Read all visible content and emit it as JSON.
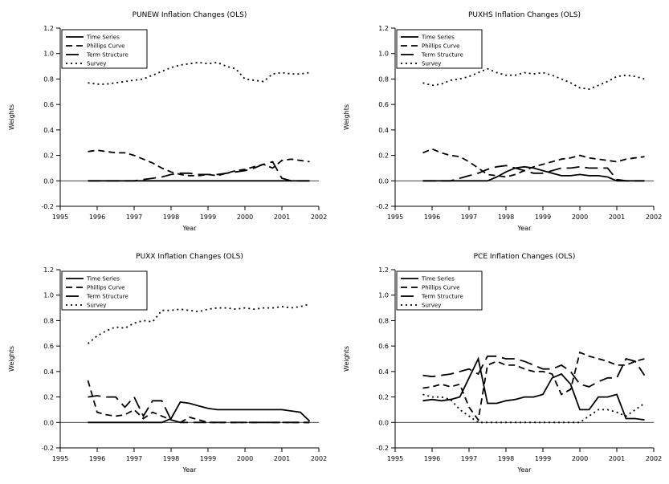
{
  "figure": {
    "background": "#ffffff",
    "line_color": "#000000",
    "layout": "2x2-grid"
  },
  "chart_data": [
    {
      "type": "line",
      "title": "PUNEW Inflation Changes (OLS)",
      "xlabel": "Year",
      "ylabel": "Weights",
      "xlim": [
        1995,
        2002
      ],
      "ylim": [
        -0.2,
        1.2
      ],
      "xticks": [
        1995,
        1996,
        1997,
        1998,
        1999,
        2000,
        2001,
        2002
      ],
      "yticks": [
        -0.2,
        0.0,
        0.2,
        0.4,
        0.6,
        0.8,
        1.0,
        1.2
      ],
      "grid": false,
      "legend_position": "top-left",
      "zero_reference_line": true,
      "x": [
        1995.75,
        1996,
        1996.25,
        1996.5,
        1996.75,
        1997,
        1997.25,
        1997.5,
        1997.75,
        1998,
        1998.25,
        1998.5,
        1998.75,
        1999,
        1999.25,
        1999.5,
        1999.75,
        2000,
        2000.25,
        2000.5,
        2000.75,
        2001,
        2001.25,
        2001.5,
        2001.75
      ],
      "series": [
        {
          "name": "Time Series",
          "style": "solid",
          "y": [
            0,
            0,
            0,
            0,
            0,
            0,
            0,
            0,
            0,
            0,
            0,
            0,
            0,
            0,
            0,
            0,
            0,
            0,
            0,
            0,
            0,
            0,
            0,
            0,
            0
          ]
        },
        {
          "name": "Phillips Curve",
          "style": "dash",
          "y": [
            0.23,
            0.24,
            0.23,
            0.22,
            0.22,
            0.2,
            0.17,
            0.14,
            0.1,
            0.07,
            0.05,
            0.04,
            0.04,
            0.05,
            0.04,
            0.06,
            0.08,
            0.09,
            0.11,
            0.13,
            0.1,
            0.16,
            0.17,
            0.16,
            0.15
          ]
        },
        {
          "name": "Term Structure",
          "style": "longdash",
          "y": [
            0,
            0,
            0,
            0,
            0,
            0,
            0.01,
            0.02,
            0.03,
            0.05,
            0.06,
            0.06,
            0.05,
            0.05,
            0.05,
            0.06,
            0.07,
            0.08,
            0.1,
            0.13,
            0.15,
            0.02,
            0,
            0,
            0
          ]
        },
        {
          "name": "Survey",
          "style": "dot",
          "y": [
            0.77,
            0.76,
            0.76,
            0.77,
            0.78,
            0.79,
            0.8,
            0.83,
            0.86,
            0.89,
            0.91,
            0.92,
            0.93,
            0.92,
            0.93,
            0.9,
            0.88,
            0.8,
            0.79,
            0.78,
            0.84,
            0.85,
            0.84,
            0.84,
            0.85
          ]
        }
      ]
    },
    {
      "type": "line",
      "title": "PUXHS Inflation Changes (OLS)",
      "xlabel": "Year",
      "ylabel": "Weights",
      "xlim": [
        1995,
        2002
      ],
      "ylim": [
        -0.2,
        1.2
      ],
      "xticks": [
        1995,
        1996,
        1997,
        1998,
        1999,
        2000,
        2001,
        2002
      ],
      "yticks": [
        -0.2,
        0.0,
        0.2,
        0.4,
        0.6,
        0.8,
        1.0,
        1.2
      ],
      "grid": false,
      "legend_position": "top-left",
      "zero_reference_line": true,
      "x": [
        1995.75,
        1996,
        1996.25,
        1996.5,
        1996.75,
        1997,
        1997.25,
        1997.5,
        1997.75,
        1998,
        1998.25,
        1998.5,
        1998.75,
        1999,
        1999.25,
        1999.5,
        1999.75,
        2000,
        2000.25,
        2000.5,
        2000.75,
        2001,
        2001.25,
        2001.5,
        2001.75
      ],
      "series": [
        {
          "name": "Time Series",
          "style": "solid",
          "y": [
            0,
            0,
            0,
            0,
            0,
            0,
            0,
            0,
            0.03,
            0.07,
            0.1,
            0.11,
            0.1,
            0.08,
            0.06,
            0.04,
            0.04,
            0.05,
            0.04,
            0.04,
            0.03,
            0,
            0,
            0,
            0
          ]
        },
        {
          "name": "Phillips Curve",
          "style": "dash",
          "y": [
            0.22,
            0.25,
            0.22,
            0.2,
            0.19,
            0.15,
            0.1,
            0.05,
            0.04,
            0.03,
            0.05,
            0.08,
            0.11,
            0.13,
            0.15,
            0.17,
            0.18,
            0.2,
            0.18,
            0.17,
            0.16,
            0.15,
            0.17,
            0.18,
            0.19
          ]
        },
        {
          "name": "Term Structure",
          "style": "longdash",
          "y": [
            0,
            0,
            0,
            0,
            0.02,
            0.04,
            0.06,
            0.09,
            0.11,
            0.12,
            0.1,
            0.08,
            0.06,
            0.06,
            0.08,
            0.1,
            0.1,
            0.11,
            0.1,
            0.1,
            0.1,
            0.01,
            0,
            0,
            0
          ]
        },
        {
          "name": "Survey",
          "style": "dot",
          "y": [
            0.77,
            0.75,
            0.76,
            0.79,
            0.8,
            0.82,
            0.85,
            0.88,
            0.85,
            0.83,
            0.83,
            0.85,
            0.84,
            0.85,
            0.83,
            0.8,
            0.77,
            0.73,
            0.72,
            0.75,
            0.78,
            0.82,
            0.83,
            0.82,
            0.8
          ]
        }
      ]
    },
    {
      "type": "line",
      "title": "PUXX Inflation Changes (OLS)",
      "xlabel": "Year",
      "ylabel": "Weights",
      "xlim": [
        1995,
        2002
      ],
      "ylim": [
        -0.2,
        1.2
      ],
      "xticks": [
        1995,
        1996,
        1997,
        1998,
        1999,
        2000,
        2001,
        2002
      ],
      "yticks": [
        -0.2,
        0.0,
        0.2,
        0.4,
        0.6,
        0.8,
        1.0,
        1.2
      ],
      "grid": false,
      "legend_position": "top-left",
      "zero_reference_line": true,
      "x": [
        1995.75,
        1996,
        1996.25,
        1996.5,
        1996.75,
        1997,
        1997.25,
        1997.5,
        1997.75,
        1998,
        1998.25,
        1998.5,
        1998.75,
        1999,
        1999.25,
        1999.5,
        1999.75,
        2000,
        2000.25,
        2000.5,
        2000.75,
        2001,
        2001.25,
        2001.5,
        2001.75
      ],
      "series": [
        {
          "name": "Time Series",
          "style": "solid",
          "y": [
            0,
            0,
            0,
            0,
            0,
            0,
            0,
            0,
            0,
            0.03,
            0.16,
            0.15,
            0.13,
            0.11,
            0.1,
            0.1,
            0.1,
            0.1,
            0.1,
            0.1,
            0.1,
            0.1,
            0.09,
            0.08,
            0.01
          ]
        },
        {
          "name": "Phillips Curve",
          "style": "dash",
          "y": [
            0.33,
            0.08,
            0.06,
            0.05,
            0.06,
            0.1,
            0.03,
            0.08,
            0.05,
            0.02,
            0.0,
            0.04,
            0.02,
            0,
            0,
            0,
            0,
            0,
            0,
            0,
            0,
            0,
            0,
            0,
            0
          ]
        },
        {
          "name": "Term Structure",
          "style": "longdash",
          "y": [
            0.2,
            0.21,
            0.2,
            0.2,
            0.12,
            0.2,
            0.05,
            0.17,
            0.17,
            0.02,
            0,
            0,
            0,
            0,
            0,
            0,
            0,
            0,
            0,
            0,
            0,
            0,
            0,
            0,
            0
          ]
        },
        {
          "name": "Survey",
          "style": "dot",
          "y": [
            0.62,
            0.68,
            0.72,
            0.75,
            0.74,
            0.78,
            0.8,
            0.79,
            0.88,
            0.88,
            0.89,
            0.88,
            0.87,
            0.89,
            0.9,
            0.9,
            0.89,
            0.9,
            0.89,
            0.9,
            0.9,
            0.91,
            0.9,
            0.91,
            0.93
          ]
        }
      ]
    },
    {
      "type": "line",
      "title": "PCE Inflation Changes (OLS)",
      "xlabel": "Year",
      "ylabel": "Weights",
      "xlim": [
        1995,
        2002
      ],
      "ylim": [
        -0.2,
        1.2
      ],
      "xticks": [
        1995,
        1996,
        1997,
        1998,
        1999,
        2000,
        2001,
        2002
      ],
      "yticks": [
        -0.2,
        0.0,
        0.2,
        0.4,
        0.6,
        0.8,
        1.0,
        1.2
      ],
      "grid": false,
      "legend_position": "top-left",
      "zero_reference_line": true,
      "x": [
        1995.75,
        1996,
        1996.25,
        1996.5,
        1996.75,
        1997,
        1997.25,
        1997.5,
        1997.75,
        1998,
        1998.25,
        1998.5,
        1998.75,
        1999,
        1999.25,
        1999.5,
        1999.75,
        2000,
        2000.25,
        2000.5,
        2000.75,
        2001,
        2001.25,
        2001.5,
        2001.75
      ],
      "series": [
        {
          "name": "Time Series",
          "style": "solid",
          "y": [
            0.17,
            0.18,
            0.17,
            0.18,
            0.2,
            0.35,
            0.5,
            0.15,
            0.15,
            0.17,
            0.18,
            0.2,
            0.2,
            0.22,
            0.35,
            0.38,
            0.3,
            0.1,
            0.1,
            0.2,
            0.2,
            0.22,
            0.03,
            0.03,
            0.02
          ]
        },
        {
          "name": "Phillips Curve",
          "style": "dash",
          "y": [
            0.27,
            0.28,
            0.3,
            0.28,
            0.3,
            0.12,
            0.02,
            0.45,
            0.48,
            0.45,
            0.45,
            0.42,
            0.4,
            0.4,
            0.38,
            0.22,
            0.26,
            0.55,
            0.52,
            0.5,
            0.48,
            0.45,
            0.45,
            0.48,
            0.5
          ]
        },
        {
          "name": "Term Structure",
          "style": "longdash",
          "y": [
            0.37,
            0.36,
            0.37,
            0.38,
            0.4,
            0.42,
            0.38,
            0.52,
            0.52,
            0.5,
            0.5,
            0.48,
            0.45,
            0.42,
            0.42,
            0.45,
            0.4,
            0.3,
            0.28,
            0.32,
            0.35,
            0.35,
            0.5,
            0.48,
            0.37
          ]
        },
        {
          "name": "Survey",
          "style": "dot",
          "y": [
            0.22,
            0.2,
            0.2,
            0.18,
            0.1,
            0.05,
            0,
            0,
            0,
            0,
            0,
            0,
            0,
            0,
            0,
            0,
            0,
            0,
            0.05,
            0.1,
            0.1,
            0.08,
            0.05,
            0.1,
            0.15
          ]
        }
      ]
    }
  ]
}
